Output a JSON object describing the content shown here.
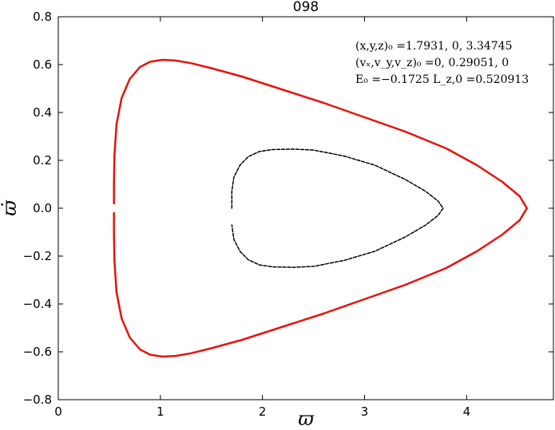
{
  "chart_data": {
    "type": "line",
    "title": "098",
    "xlabel": "ϖ",
    "ylabel": "ϖ̇",
    "xlim": [
      0,
      4.85
    ],
    "ylim": [
      -0.8,
      0.8
    ],
    "xticks": [
      0,
      1,
      2,
      3,
      4
    ],
    "xtick_labels": [
      "0",
      "1",
      "2",
      "3",
      "4"
    ],
    "yticks": [
      -0.8,
      -0.6,
      -0.4,
      -0.2,
      0.0,
      0.2,
      0.4,
      0.6,
      0.8
    ],
    "ytick_labels": [
      "−0.8",
      "−0.6",
      "−0.4",
      "−0.2",
      "0.0",
      "0.2",
      "0.4",
      "0.6",
      "0.8"
    ],
    "grid": false,
    "annotations": [
      "(x,y,z)₀ =1.7931, 0, 3.34745",
      "(vₓ,v_y,v_z)₀ =0, 0.29051, 0",
      "E₀ =−0.1725  L_z,0 =0.520913"
    ],
    "series": [
      {
        "color": "#e8120c",
        "style": "solid",
        "x": [
          0.545,
          0.545,
          0.55,
          0.57,
          0.62,
          0.7,
          0.8,
          0.9,
          1.02,
          1.15,
          1.3,
          1.5,
          1.8,
          2.2,
          2.6,
          3.0,
          3.4,
          3.8,
          4.1,
          4.35,
          4.52,
          4.59,
          4.52,
          4.35,
          4.1,
          3.8,
          3.4,
          3.0,
          2.6,
          2.2,
          1.8,
          1.5,
          1.3,
          1.15,
          1.02,
          0.9,
          0.8,
          0.7,
          0.62,
          0.57,
          0.55,
          0.545,
          0.545
        ],
        "y": [
          0.02,
          0.1,
          0.22,
          0.35,
          0.46,
          0.54,
          0.59,
          0.612,
          0.62,
          0.617,
          0.606,
          0.585,
          0.55,
          0.495,
          0.44,
          0.38,
          0.32,
          0.25,
          0.18,
          0.11,
          0.05,
          0.0,
          -0.05,
          -0.11,
          -0.18,
          -0.25,
          -0.32,
          -0.38,
          -0.44,
          -0.495,
          -0.55,
          -0.585,
          -0.606,
          -0.617,
          -0.62,
          -0.612,
          -0.59,
          -0.54,
          -0.46,
          -0.35,
          -0.22,
          -0.1,
          -0.02
        ]
      },
      {
        "color": "#000000",
        "style": "dashed",
        "x": [
          1.7,
          1.7,
          1.72,
          1.78,
          1.86,
          1.97,
          2.1,
          2.3,
          2.5,
          2.8,
          3.1,
          3.4,
          3.6,
          3.72,
          3.77,
          3.72,
          3.6,
          3.4,
          3.1,
          2.8,
          2.5,
          2.3,
          2.1,
          1.97,
          1.86,
          1.78,
          1.72,
          1.7
        ],
        "y": [
          0.0,
          0.07,
          0.13,
          0.18,
          0.215,
          0.237,
          0.245,
          0.247,
          0.243,
          0.218,
          0.18,
          0.12,
          0.07,
          0.03,
          0.0,
          -0.03,
          -0.07,
          -0.12,
          -0.18,
          -0.218,
          -0.243,
          -0.247,
          -0.245,
          -0.237,
          -0.215,
          -0.18,
          -0.13,
          -0.07
        ]
      }
    ]
  }
}
